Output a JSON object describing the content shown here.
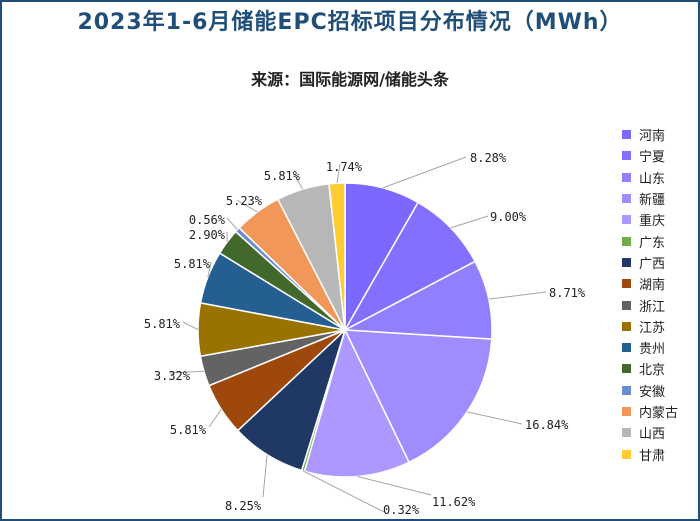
{
  "chart_data": {
    "type": "pie",
    "title": "2023年1-6月储能EPC招标项目分布情况（MWh）",
    "subtitle": "来源：国际能源网/储能头条",
    "legend_position": "right",
    "slices": [
      {
        "label": "河南",
        "value": 8.28,
        "value_label": "8.28%",
        "color": "#7b68ff"
      },
      {
        "label": "宁夏",
        "value": 9.0,
        "value_label": "9.00%",
        "color": "#8470ff"
      },
      {
        "label": "山东",
        "value": 8.71,
        "value_label": "8.71%",
        "color": "#9080ff"
      },
      {
        "label": "新疆",
        "value": 16.84,
        "value_label": "16.84%",
        "color": "#9f8cff"
      },
      {
        "label": "重庆",
        "value": 11.62,
        "value_label": "11.62%",
        "color": "#ad98ff"
      },
      {
        "label": "广东",
        "value": 0.32,
        "value_label": "0.32%",
        "color": "#70ad47"
      },
      {
        "label": "广西",
        "value": 8.25,
        "value_label": "8.25%",
        "color": "#203864"
      },
      {
        "label": "湖南",
        "value": 5.81,
        "value_label": "5.81%",
        "color": "#9e480e"
      },
      {
        "label": "浙江",
        "value": 3.32,
        "value_label": "3.32%",
        "color": "#636363"
      },
      {
        "label": "江苏",
        "value": 5.81,
        "value_label": "5.81%",
        "color": "#997300"
      },
      {
        "label": "贵州",
        "value": 5.81,
        "value_label": "5.81%",
        "color": "#255e91"
      },
      {
        "label": "北京",
        "value": 2.9,
        "value_label": "2.90%",
        "color": "#43682b"
      },
      {
        "label": "安徽",
        "value": 0.56,
        "value_label": "0.56%",
        "color": "#698ed0"
      },
      {
        "label": "内蒙古",
        "value": 5.23,
        "value_label": "5.23%",
        "color": "#f1975a"
      },
      {
        "label": "山西",
        "value": 5.81,
        "value_label": "5.81%",
        "color": "#b7b7b7"
      },
      {
        "label": "甘肃",
        "value": 1.74,
        "value_label": "1.74%",
        "color": "#ffcd33"
      }
    ]
  }
}
